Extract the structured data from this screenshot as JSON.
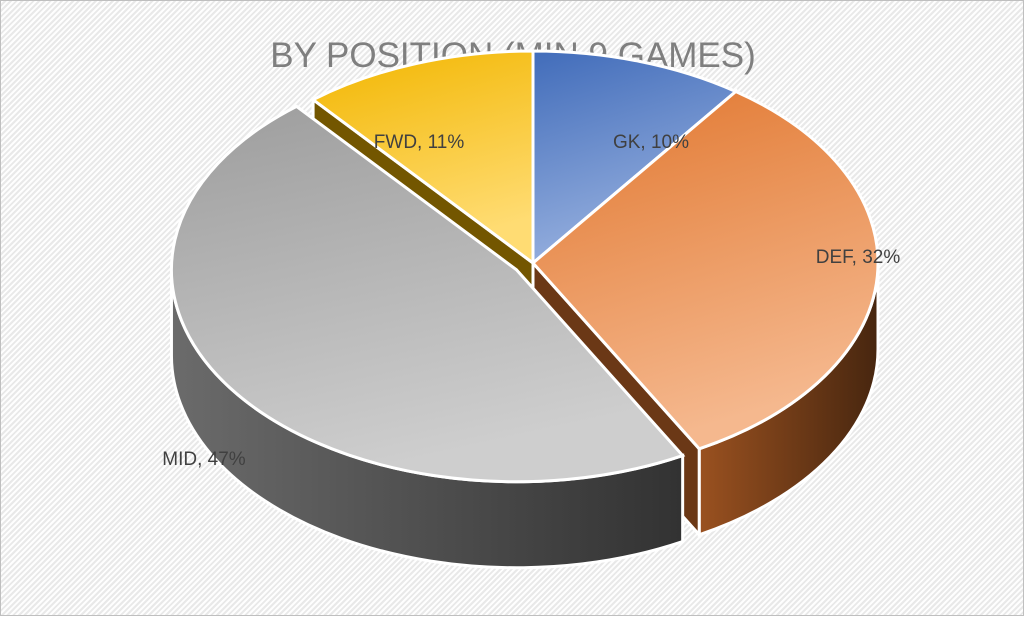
{
  "chart_data": {
    "type": "pie",
    "title": "BY POSITION (MIN 9 GAMES)",
    "style": "3d-exploded",
    "slices": [
      {
        "label": "GK",
        "value": 10,
        "percent_label": "10%",
        "color": "#4472c4"
      },
      {
        "label": "DEF",
        "value": 32,
        "percent_label": "32%",
        "color": "#ed7d31"
      },
      {
        "label": "MID",
        "value": 47,
        "percent_label": "47%",
        "color": "#a5a5a5"
      },
      {
        "label": "FWD",
        "value": 11,
        "percent_label": "11%",
        "color": "#ffc000"
      }
    ]
  }
}
